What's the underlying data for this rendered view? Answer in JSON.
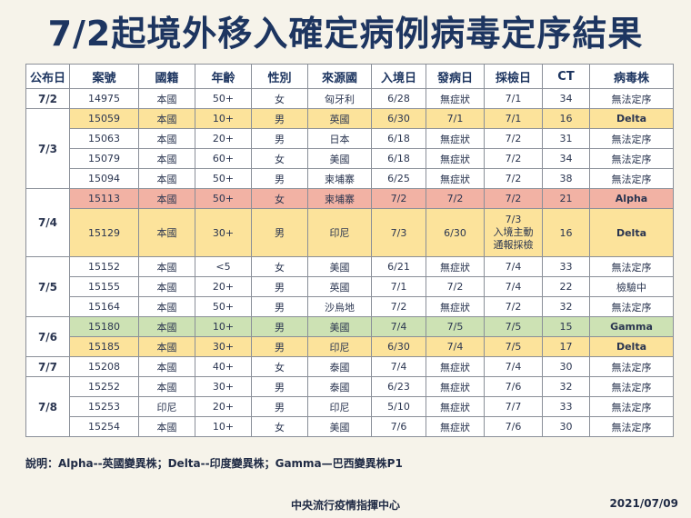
{
  "title": "7/2起境外移入確定病例病毒定序結果",
  "headers": [
    "公布日",
    "案號",
    "國籍",
    "年齡",
    "性別",
    "來源國",
    "入境日",
    "發病日",
    "採檢日",
    "CT",
    "病毒株"
  ],
  "colors": {
    "yellow": "#fce39b",
    "red": "#f2b2a4",
    "green": "#cde2b4",
    "title": "#1d3560"
  },
  "groups": [
    {
      "date": "7/2",
      "rows": [
        {
          "hl": "",
          "cells": [
            "14975",
            "本國",
            "50+",
            "女",
            "匈牙利",
            "6/28",
            "無症狀",
            "7/1",
            "34",
            "無法定序"
          ]
        }
      ]
    },
    {
      "date": "7/3",
      "rows": [
        {
          "hl": "yellow",
          "cells": [
            "15059",
            "本國",
            "10+",
            "男",
            "英國",
            "6/30",
            "7/1",
            "7/1",
            "16",
            "Delta"
          ]
        },
        {
          "hl": "",
          "cells": [
            "15063",
            "本國",
            "20+",
            "男",
            "日本",
            "6/18",
            "無症狀",
            "7/2",
            "31",
            "無法定序"
          ]
        },
        {
          "hl": "",
          "cells": [
            "15079",
            "本國",
            "60+",
            "女",
            "美國",
            "6/18",
            "無症狀",
            "7/2",
            "34",
            "無法定序"
          ]
        },
        {
          "hl": "",
          "cells": [
            "15094",
            "本國",
            "50+",
            "男",
            "柬埔寨",
            "6/25",
            "無症狀",
            "7/2",
            "38",
            "無法定序"
          ]
        }
      ]
    },
    {
      "date": "7/4",
      "rows": [
        {
          "hl": "red",
          "cells": [
            "15113",
            "本國",
            "50+",
            "女",
            "柬埔寨",
            "7/2",
            "7/2",
            "7/2",
            "21",
            "Alpha"
          ]
        },
        {
          "hl": "yellow",
          "tall": true,
          "cells": [
            "15129",
            "本國",
            "30+",
            "男",
            "印尼",
            "7/3",
            "6/30",
            "7/3 入境主動 通報採檢",
            "16",
            "Delta"
          ]
        }
      ]
    },
    {
      "date": "7/5",
      "rows": [
        {
          "hl": "",
          "cells": [
            "15152",
            "本國",
            "<5",
            "女",
            "美國",
            "6/21",
            "無症狀",
            "7/4",
            "33",
            "無法定序"
          ]
        },
        {
          "hl": "",
          "cells": [
            "15155",
            "本國",
            "20+",
            "男",
            "英國",
            "7/1",
            "7/2",
            "7/4",
            "22",
            "檢驗中"
          ]
        },
        {
          "hl": "",
          "cells": [
            "15164",
            "本國",
            "50+",
            "男",
            "沙烏地",
            "7/2",
            "無症狀",
            "7/2",
            "32",
            "無法定序"
          ]
        }
      ]
    },
    {
      "date": "7/6",
      "rows": [
        {
          "hl": "green",
          "cells": [
            "15180",
            "本國",
            "10+",
            "男",
            "美國",
            "7/4",
            "7/5",
            "7/5",
            "15",
            "Gamma"
          ]
        },
        {
          "hl": "yellow",
          "cells": [
            "15185",
            "本國",
            "30+",
            "男",
            "印尼",
            "6/30",
            "7/4",
            "7/5",
            "17",
            "Delta"
          ]
        }
      ]
    },
    {
      "date": "7/7",
      "rows": [
        {
          "hl": "",
          "cells": [
            "15208",
            "本國",
            "40+",
            "女",
            "泰國",
            "7/4",
            "無症狀",
            "7/4",
            "30",
            "無法定序"
          ]
        }
      ]
    },
    {
      "date": "7/8",
      "rows": [
        {
          "hl": "",
          "cells": [
            "15252",
            "本國",
            "30+",
            "男",
            "泰國",
            "6/23",
            "無症狀",
            "7/6",
            "32",
            "無法定序"
          ]
        },
        {
          "hl": "",
          "cells": [
            "15253",
            "印尼",
            "20+",
            "男",
            "印尼",
            "5/10",
            "無症狀",
            "7/7",
            "33",
            "無法定序"
          ]
        },
        {
          "hl": "",
          "cells": [
            "15254",
            "本國",
            "10+",
            "女",
            "美國",
            "7/6",
            "無症狀",
            "7/6",
            "30",
            "無法定序"
          ]
        }
      ]
    }
  ],
  "note": "說明：Alpha--英國變異株；Delta--印度變異株；Gamma—巴西變異株P1",
  "footer": {
    "org": "中央流行疫情指揮中心",
    "date": "2021/07/09"
  }
}
